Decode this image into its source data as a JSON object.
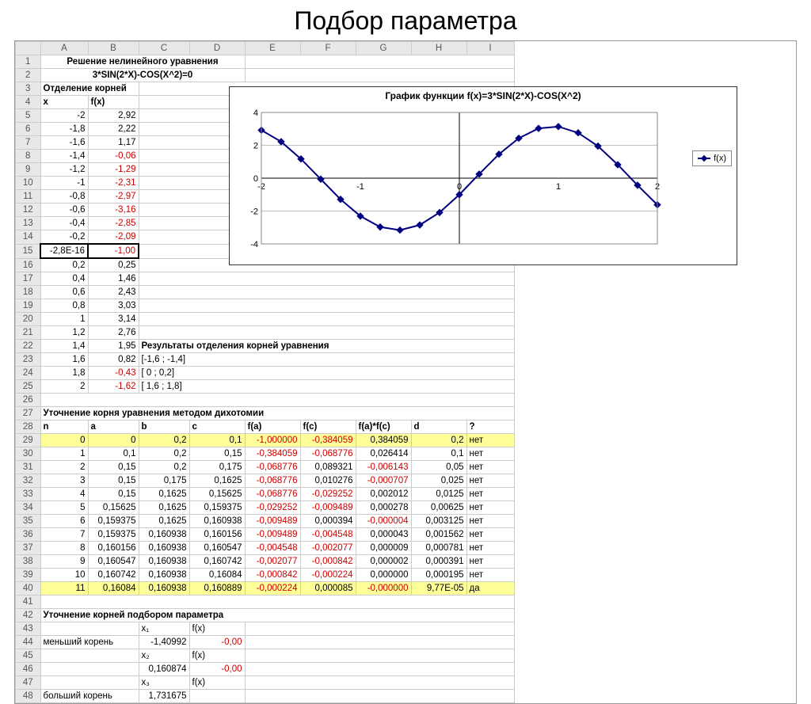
{
  "slide_title": "Подбор параметра",
  "columns": [
    "A",
    "B",
    "C",
    "D",
    "E",
    "F",
    "G",
    "H",
    "I"
  ],
  "heading_row1": "Решение нелинейного уравнения",
  "heading_row2": "3*SIN(2*X)-COS(X^2)=0",
  "heading_row3": "Отделение корней",
  "hdr_x": "x",
  "hdr_fx": "f(x)",
  "xfx": [
    {
      "r": 5,
      "x": "-2",
      "fx": "2,92"
    },
    {
      "r": 6,
      "x": "-1,8",
      "fx": "2,22"
    },
    {
      "r": 7,
      "x": "-1,6",
      "fx": "1,17"
    },
    {
      "r": 8,
      "x": "-1,4",
      "fx": "-0,06",
      "neg": true
    },
    {
      "r": 9,
      "x": "-1,2",
      "fx": "-1,29",
      "neg": true
    },
    {
      "r": 10,
      "x": "-1",
      "fx": "-2,31",
      "neg": true
    },
    {
      "r": 11,
      "x": "-0,8",
      "fx": "-2,97",
      "neg": true
    },
    {
      "r": 12,
      "x": "-0,6",
      "fx": "-3,16",
      "neg": true
    },
    {
      "r": 13,
      "x": "-0,4",
      "fx": "-2,85",
      "neg": true
    },
    {
      "r": 14,
      "x": "-0,2",
      "fx": "-2,09",
      "neg": true
    },
    {
      "r": 15,
      "x": "-2,8E-16",
      "fx": "-1,00",
      "neg": true,
      "sel": true
    },
    {
      "r": 16,
      "x": "0,2",
      "fx": "0,25"
    },
    {
      "r": 17,
      "x": "0,4",
      "fx": "1,46"
    },
    {
      "r": 18,
      "x": "0,6",
      "fx": "2,43"
    },
    {
      "r": 19,
      "x": "0,8",
      "fx": "3,03"
    },
    {
      "r": 20,
      "x": "1",
      "fx": "3,14"
    },
    {
      "r": 21,
      "x": "1,2",
      "fx": "2,76"
    },
    {
      "r": 22,
      "x": "1,4",
      "fx": "1,95"
    },
    {
      "r": 23,
      "x": "1,6",
      "fx": "0,82"
    },
    {
      "r": 24,
      "x": "1,8",
      "fx": "-0,43",
      "neg": true
    },
    {
      "r": 25,
      "x": "2",
      "fx": "-1,62",
      "neg": true
    }
  ],
  "results_title": "Результаты отделения корней уравнения",
  "intervals": [
    "[-1,6 ; -1,4]",
    "[   0 ; 0,2]",
    "[ 1,6 ;  1,8]"
  ],
  "dich_title": "Уточнение корня уравнения методом дихотомии",
  "dich_hdr": {
    "n": "n",
    "a": "a",
    "b": "b",
    "c": "c",
    "fa": "f(a)",
    "fc": "f(c)",
    "fac": "f(a)*f(c)",
    "d": "d",
    "q": "?"
  },
  "dich": [
    {
      "r": 29,
      "n": "0",
      "a": "0",
      "b": "0,2",
      "c": "0,1",
      "fa": "-1,000000",
      "fc": "-0,384059",
      "fac": "0,384059",
      "d": "0,2",
      "q": "нет",
      "hl": true
    },
    {
      "r": 30,
      "n": "1",
      "a": "0,1",
      "b": "0,2",
      "c": "0,15",
      "fa": "-0,384059",
      "fc": "-0,068776",
      "fac": "0,026414",
      "d": "0,1",
      "q": "нет"
    },
    {
      "r": 31,
      "n": "2",
      "a": "0,15",
      "b": "0,2",
      "c": "0,175",
      "fa": "-0,068776",
      "fc": "0,089321",
      "fac": "-0,006143",
      "d": "0,05",
      "q": "нет"
    },
    {
      "r": 32,
      "n": "3",
      "a": "0,15",
      "b": "0,175",
      "c": "0,1625",
      "fa": "-0,068776",
      "fc": "0,010276",
      "fac": "-0,000707",
      "d": "0,025",
      "q": "нет"
    },
    {
      "r": 33,
      "n": "4",
      "a": "0,15",
      "b": "0,1625",
      "c": "0,15625",
      "fa": "-0,068776",
      "fc": "-0,029252",
      "fac": "0,002012",
      "d": "0,0125",
      "q": "нет"
    },
    {
      "r": 34,
      "n": "5",
      "a": "0,15625",
      "b": "0,1625",
      "c": "0,159375",
      "fa": "-0,029252",
      "fc": "-0,009489",
      "fac": "0,000278",
      "d": "0,00625",
      "q": "нет"
    },
    {
      "r": 35,
      "n": "6",
      "a": "0,159375",
      "b": "0,1625",
      "c": "0,160938",
      "fa": "-0,009489",
      "fc": "0,000394",
      "fac": "-0,000004",
      "d": "0,003125",
      "q": "нет"
    },
    {
      "r": 36,
      "n": "7",
      "a": "0,159375",
      "b": "0,160938",
      "c": "0,160156",
      "fa": "-0,009489",
      "fc": "-0,004548",
      "fac": "0,000043",
      "d": "0,001562",
      "q": "нет"
    },
    {
      "r": 37,
      "n": "8",
      "a": "0,160156",
      "b": "0,160938",
      "c": "0,160547",
      "fa": "-0,004548",
      "fc": "-0,002077",
      "fac": "0,000009",
      "d": "0,000781",
      "q": "нет"
    },
    {
      "r": 38,
      "n": "9",
      "a": "0,160547",
      "b": "0,160938",
      "c": "0,160742",
      "fa": "-0,002077",
      "fc": "-0,000842",
      "fac": "0,000002",
      "d": "0,000391",
      "q": "нет"
    },
    {
      "r": 39,
      "n": "10",
      "a": "0,160742",
      "b": "0,160938",
      "c": "0,16084",
      "fa": "-0,000842",
      "fc": "-0,000224",
      "fac": "0,000000",
      "d": "0,000195",
      "q": "нет"
    },
    {
      "r": 40,
      "n": "11",
      "a": "0,16084",
      "b": "0,160938",
      "c": "0,160889",
      "fa": "-0,000224",
      "fc": "0,000085",
      "fac": "-0,000000",
      "d": "9,77E-05",
      "q": "да",
      "hl": true
    }
  ],
  "param_title": "Уточнение корней подбором параметра",
  "param_hdr_x": [
    "x₁",
    "x₂",
    "x₃"
  ],
  "param_hdr_fx": "f(x)",
  "param_rows": [
    {
      "r": 44,
      "lbl": "меньший корень",
      "x": "-1,40992",
      "fx": "-0,00"
    },
    {
      "r": 46,
      "lbl": "",
      "x": "0,160874",
      "fx": "-0,00"
    },
    {
      "r": 48,
      "lbl": "больший корень",
      "x": "1,731675",
      "fx": ""
    }
  ],
  "chart": {
    "title": "График функции f(x)=3*SIN(2*X)-COS(X^2)",
    "legend": "f(x)",
    "xmin": -2,
    "xmax": 2,
    "ymin": -4,
    "ymax": 4,
    "xticks": [
      -2,
      -1,
      0,
      1,
      2
    ],
    "yticks": [
      -4,
      -2,
      0,
      2,
      4
    ],
    "series": [
      {
        "x": -2,
        "y": 2.92
      },
      {
        "x": -1.8,
        "y": 2.22
      },
      {
        "x": -1.6,
        "y": 1.17
      },
      {
        "x": -1.4,
        "y": -0.06
      },
      {
        "x": -1.2,
        "y": -1.29
      },
      {
        "x": -1,
        "y": -2.31
      },
      {
        "x": -0.8,
        "y": -2.97
      },
      {
        "x": -0.6,
        "y": -3.16
      },
      {
        "x": -0.4,
        "y": -2.85
      },
      {
        "x": -0.2,
        "y": -2.09
      },
      {
        "x": 0,
        "y": -1.0
      },
      {
        "x": 0.2,
        "y": 0.25
      },
      {
        "x": 0.4,
        "y": 1.46
      },
      {
        "x": 0.6,
        "y": 2.43
      },
      {
        "x": 0.8,
        "y": 3.03
      },
      {
        "x": 1,
        "y": 3.14
      },
      {
        "x": 1.2,
        "y": 2.76
      },
      {
        "x": 1.4,
        "y": 1.95
      },
      {
        "x": 1.6,
        "y": 0.82
      },
      {
        "x": 1.8,
        "y": -0.43
      },
      {
        "x": 2,
        "y": -1.62
      }
    ],
    "line_color": "#000080",
    "marker_color": "#000080",
    "grid_color": "#c0c0c0",
    "bg": "#ffffff",
    "font_size": 11
  }
}
